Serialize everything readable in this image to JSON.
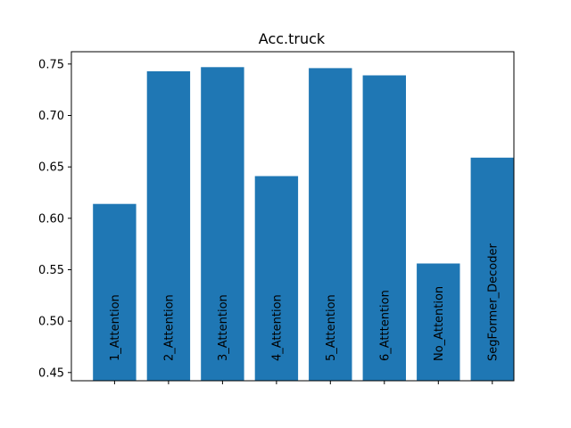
{
  "chart_data": {
    "type": "bar",
    "title": "Acc.truck",
    "xlabel": "",
    "ylabel": "",
    "categories": [
      "1_Attention",
      "2_Attention",
      "3_Attention",
      "4_Attention",
      "5_Attention",
      "6_Atttention",
      "No_Attention",
      "SegFormer_Decoder"
    ],
    "values": [
      0.614,
      0.743,
      0.747,
      0.641,
      0.746,
      0.739,
      0.556,
      0.659
    ],
    "ylim": [
      0.442,
      0.762
    ],
    "yticks": [
      "0.45",
      "0.50",
      "0.55",
      "0.60",
      "0.65",
      "0.70",
      "0.75"
    ],
    "bar_color": "#1f77b4",
    "grid": false,
    "x_tick_labels_shown": false,
    "labels_inside_bars": true
  }
}
